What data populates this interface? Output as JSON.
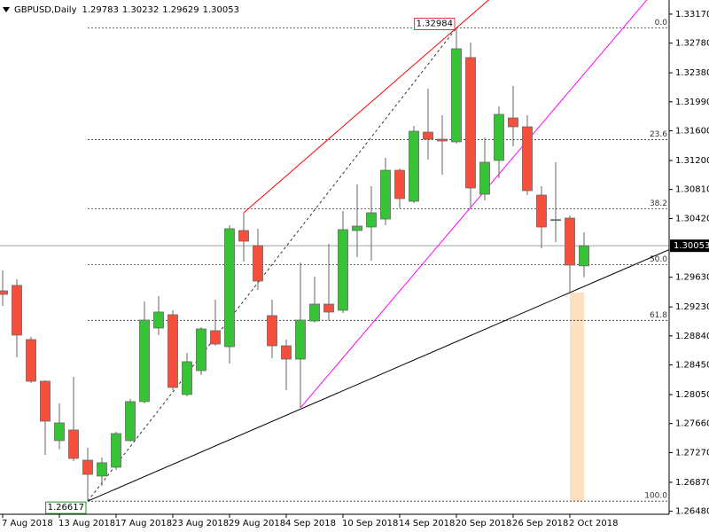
{
  "chart_data": {
    "type": "candlestick",
    "title": "GBPUSD,Daily",
    "categories": [
      "7 Aug 2018",
      null,
      null,
      null,
      "13 Aug 2018",
      null,
      null,
      null,
      "17 Aug 2018",
      null,
      null,
      null,
      "23 Aug 2018",
      null,
      null,
      null,
      "29 Aug 2018",
      null,
      null,
      null,
      "4 Sep 2018",
      null,
      null,
      null,
      "10 Sep 2018",
      null,
      null,
      null,
      "14 Sep 2018",
      null,
      null,
      null,
      "20 Sep 2018",
      null,
      null,
      null,
      "26 Sep 2018",
      null,
      null,
      null,
      "2 Oct 2018",
      null
    ],
    "open": [
      1.29447,
      1.29519,
      1.28791,
      1.2823,
      1.27431,
      1.27574,
      1.27168,
      1.26954,
      1.27073,
      1.27431,
      1.27956,
      1.28946,
      1.29125,
      1.28051,
      1.28373,
      1.2891,
      1.28695,
      1.30258,
      1.30055,
      1.29113,
      1.28707,
      1.28528,
      1.29041,
      1.29268,
      1.29185,
      1.30258,
      1.30306,
      1.30413,
      1.31069,
      1.30652,
      1.31582,
      1.31487,
      1.31451,
      1.32585,
      1.30747,
      1.31201,
      1.31773,
      1.31654,
      1.30735,
      1.30401,
      1.30425,
      1.29783
    ],
    "high": [
      1.29721,
      1.29602,
      1.28827,
      1.28242,
      1.27932,
      1.2829,
      1.27335,
      1.27204,
      1.2755,
      1.27992,
      1.29304,
      1.29375,
      1.29185,
      1.28612,
      1.28958,
      1.29328,
      1.3033,
      1.30497,
      1.30282,
      1.29328,
      1.28791,
      1.29829,
      1.29638,
      1.30079,
      1.30521,
      1.30879,
      1.30855,
      1.31236,
      1.31093,
      1.31666,
      1.32167,
      1.31809,
      1.32984,
      1.32787,
      1.31511,
      1.31928,
      1.32203,
      1.31809,
      1.30855,
      1.31177,
      1.30461,
      1.30232
    ],
    "low": [
      1.29244,
      1.28552,
      1.28206,
      1.2724,
      1.27312,
      1.27156,
      1.26617,
      1.26822,
      1.27037,
      1.27419,
      1.27932,
      1.28851,
      1.28111,
      1.28027,
      1.28314,
      1.28707,
      1.28469,
      1.29841,
      1.29459,
      1.2854,
      1.28111,
      1.27872,
      1.29018,
      1.29041,
      1.29149,
      1.299,
      1.29853,
      1.3033,
      1.30556,
      1.30628,
      1.31213,
      1.3101,
      1.31427,
      1.30568,
      1.30664,
      1.30962,
      1.31392,
      1.30735,
      1.3002,
      1.30103,
      1.29423,
      1.29629
    ],
    "close": [
      1.29399,
      1.28851,
      1.2823,
      1.27693,
      1.27669,
      1.27192,
      1.26977,
      1.27133,
      1.27526,
      1.27956,
      1.29053,
      1.29161,
      1.28147,
      1.28493,
      1.28934,
      1.28731,
      1.30282,
      1.30115,
      1.29578,
      1.28707,
      1.28528,
      1.29053,
      1.29268,
      1.29161,
      1.3027,
      1.30318,
      1.30497,
      1.31069,
      1.30688,
      1.31594,
      1.31487,
      1.31463,
      1.32704,
      1.30831,
      1.31177,
      1.31821,
      1.31654,
      1.30795,
      1.30306,
      1.30405,
      1.29793,
      1.30053
    ],
    "up_color": "#36c336",
    "down_color": "#f4503c",
    "wick_color": "#666666",
    "ylim": [
      1.2644,
      1.3336
    ],
    "yticks": [
      {
        "value": 1.3317,
        "label": "1.33170"
      },
      {
        "value": 1.3278,
        "label": "1.32780"
      },
      {
        "value": 1.3238,
        "label": "1.32380"
      },
      {
        "value": 1.3199,
        "label": "1.31990"
      },
      {
        "value": 1.316,
        "label": "1.31600"
      },
      {
        "value": 1.312,
        "label": "1.31200"
      },
      {
        "value": 1.3081,
        "label": "1.30810"
      },
      {
        "value": 1.3042,
        "label": "1.30420"
      },
      {
        "value": 1.2963,
        "label": "1.29630"
      },
      {
        "value": 1.2923,
        "label": "1.29230"
      },
      {
        "value": 1.2884,
        "label": "1.28840"
      },
      {
        "value": 1.2845,
        "label": "1.28450"
      },
      {
        "value": 1.2805,
        "label": "1.28050"
      },
      {
        "value": 1.2766,
        "label": "1.27660"
      },
      {
        "value": 1.2727,
        "label": "1.27270"
      },
      {
        "value": 1.2687,
        "label": "1.26870"
      },
      {
        "value": 1.2648,
        "label": "1.26480"
      }
    ],
    "grid": false,
    "trendlines": [
      {
        "color": "#ff0000",
        "points": [
          [
            17,
            1.30497
          ],
          [
            32,
            1.32984
          ]
        ],
        "ray": true
      },
      {
        "color": "#ff00ff",
        "points": [
          [
            21,
            1.27872
          ],
          [
            33,
            1.30568
          ]
        ],
        "ray": true
      },
      {
        "color": "#000000",
        "points": [
          [
            6,
            1.26617
          ],
          [
            40,
            1.29423
          ]
        ],
        "ray": true
      }
    ],
    "fibonacci": {
      "color": "#333333",
      "points": [
        [
          6,
          1.26617
        ],
        [
          32,
          1.32984
        ]
      ],
      "levels": [
        {
          "value": 0,
          "label": "0.0"
        },
        23.6,
        38.2,
        {
          "value": 50,
          "label": "50.0"
        },
        61.8,
        {
          "value": 100,
          "label": "100.0"
        }
      ]
    },
    "rectangle": {
      "color": "#fde0c2",
      "points": [
        [
          40,
          1.29423
        ],
        [
          41,
          1.26617
        ]
      ]
    },
    "annotations": [
      {
        "path": "chart_data.high.32",
        "color": "#e0304a"
      },
      {
        "path": "chart_data.low.6",
        "color": "#1f8f1f"
      }
    ],
    "price_line_color": "#a0a0a0"
  }
}
